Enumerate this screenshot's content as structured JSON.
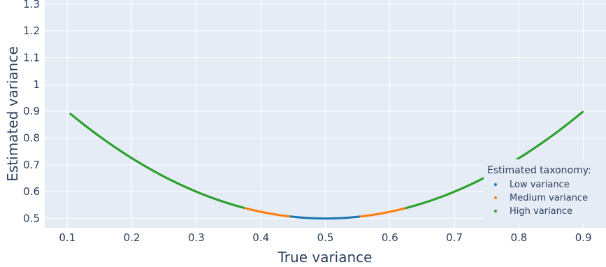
{
  "chart_data": {
    "type": "scatter",
    "title": "",
    "xlabel": "True variance",
    "ylabel": "Estimated variance",
    "xlim": [
      0.065,
      0.935
    ],
    "ylim": [
      0.465,
      1.315
    ],
    "xticks": [
      0.1,
      0.2,
      0.3,
      0.4,
      0.5,
      0.6,
      0.7,
      0.8,
      0.9
    ],
    "yticks": [
      0.5,
      0.6,
      0.7,
      0.8,
      0.9,
      1,
      1.1,
      1.2,
      1.3
    ],
    "grid": true,
    "legend": {
      "title": "Estimated taxonomy:",
      "placement": "bottom-right"
    },
    "curve": {
      "relation": "y = 0.5 + 2.5 * (x - 0.5)^2",
      "x_range": [
        0.105,
        0.9
      ]
    },
    "series": [
      {
        "name": "Low variance",
        "color": "#1f77b4",
        "x_ranges": [
          [
            0.445,
            0.555
          ]
        ]
      },
      {
        "name": "Medium variance",
        "color": "#ff7f0e",
        "x_ranges": [
          [
            0.375,
            0.445
          ],
          [
            0.555,
            0.625
          ]
        ]
      },
      {
        "name": "High variance",
        "color": "#2ca02c",
        "x_ranges": [
          [
            0.105,
            0.375
          ],
          [
            0.625,
            0.9
          ]
        ]
      }
    ],
    "colors": {
      "plot_background": "#e5ecf6",
      "grid": "#ffffff",
      "text": "#2a3f5f"
    }
  }
}
